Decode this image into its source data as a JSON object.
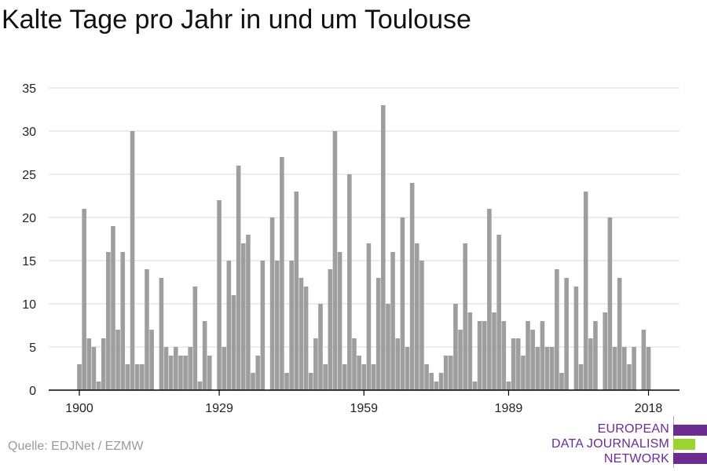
{
  "title": "Kalte Tage pro Jahr in und um Toulouse",
  "source": "Quelle: EDJNet / EZMW",
  "logo": {
    "line1": "EUROPEAN",
    "line2": "DATA JOURNALISM",
    "line3": "NETWORK",
    "colors": [
      "#6b2c91",
      "#9bd32f",
      "#6b2c91"
    ]
  },
  "colors": {
    "bar": "#9e9e9e",
    "grid": "#d9d9d9",
    "axis": "#000000"
  },
  "chart_data": {
    "type": "bar",
    "title": "Kalte Tage pro Jahr in und um Toulouse",
    "xlabel": "",
    "ylabel": "",
    "ylim": [
      0,
      35
    ],
    "yticks": [
      0,
      5,
      10,
      15,
      20,
      25,
      30,
      35
    ],
    "xtick_labels": [
      "1900",
      "1929",
      "1959",
      "1989",
      "2018"
    ],
    "grid": true,
    "years": [
      1900,
      1901,
      1902,
      1903,
      1904,
      1905,
      1906,
      1907,
      1908,
      1909,
      1910,
      1911,
      1912,
      1913,
      1914,
      1915,
      1916,
      1917,
      1918,
      1919,
      1920,
      1921,
      1922,
      1923,
      1924,
      1925,
      1926,
      1927,
      1928,
      1929,
      1930,
      1931,
      1932,
      1933,
      1934,
      1935,
      1936,
      1937,
      1938,
      1939,
      1940,
      1941,
      1942,
      1943,
      1944,
      1945,
      1946,
      1947,
      1948,
      1949,
      1950,
      1951,
      1952,
      1953,
      1954,
      1955,
      1956,
      1957,
      1958,
      1959,
      1960,
      1961,
      1962,
      1963,
      1964,
      1965,
      1966,
      1967,
      1968,
      1969,
      1970,
      1971,
      1972,
      1973,
      1974,
      1975,
      1976,
      1977,
      1978,
      1979,
      1980,
      1981,
      1982,
      1983,
      1984,
      1985,
      1986,
      1987,
      1988,
      1989,
      1990,
      1991,
      1992,
      1993,
      1994,
      1995,
      1996,
      1997,
      1998,
      1999,
      2000,
      2001,
      2002,
      2003,
      2004,
      2005,
      2006,
      2007,
      2008,
      2009,
      2010,
      2011,
      2012,
      2013,
      2014,
      2015,
      2016,
      2017,
      2018
    ],
    "values": [
      3,
      21,
      6,
      5,
      1,
      6,
      16,
      19,
      7,
      16,
      3,
      30,
      3,
      3,
      14,
      7,
      0,
      13,
      5,
      4,
      5,
      4,
      4,
      5,
      12,
      1,
      8,
      4,
      0,
      22,
      5,
      15,
      11,
      26,
      17,
      18,
      2,
      4,
      15,
      0,
      20,
      15,
      27,
      2,
      15,
      23,
      13,
      12,
      2,
      6,
      10,
      3,
      14,
      30,
      16,
      3,
      25,
      6,
      4,
      3,
      17,
      3,
      13,
      33,
      10,
      16,
      6,
      20,
      5,
      24,
      17,
      15,
      3,
      2,
      1,
      2,
      4,
      4,
      10,
      7,
      17,
      9,
      1,
      8,
      8,
      21,
      9,
      18,
      8,
      1,
      6,
      6,
      4,
      8,
      7,
      5,
      8,
      5,
      5,
      14,
      2,
      13,
      0,
      12,
      3,
      23,
      6,
      8,
      0,
      9,
      20,
      5,
      13,
      5,
      3,
      5,
      0,
      7,
      5
    ]
  }
}
